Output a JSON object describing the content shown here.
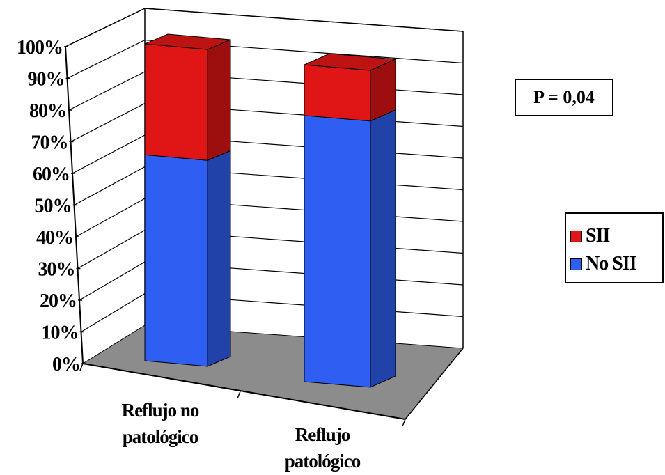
{
  "chart_data": {
    "type": "bar",
    "stacked": true,
    "three_d": true,
    "categories": [
      "Reflujo no patológico",
      "Reflujo patológico"
    ],
    "category_lines": [
      [
        "Reflujo no",
        "patológico"
      ],
      [
        "Reflujo",
        "patológico"
      ]
    ],
    "series": [
      {
        "name": "No SII",
        "values": [
          65,
          84
        ],
        "color": "#2e5ef2"
      },
      {
        "name": "SII",
        "values": [
          35,
          16
        ],
        "color": "#e01616"
      }
    ],
    "ylim": [
      0,
      100
    ],
    "yticks": [
      "0%",
      "10%",
      "20%",
      "30%",
      "40%",
      "50%",
      "60%",
      "70%",
      "80%",
      "90%",
      "100%"
    ],
    "grid": true,
    "legend_position": "right",
    "legend": [
      "SII",
      "No SII"
    ],
    "annotation": "P = 0,04",
    "floor_color": "#8c8c8c"
  }
}
